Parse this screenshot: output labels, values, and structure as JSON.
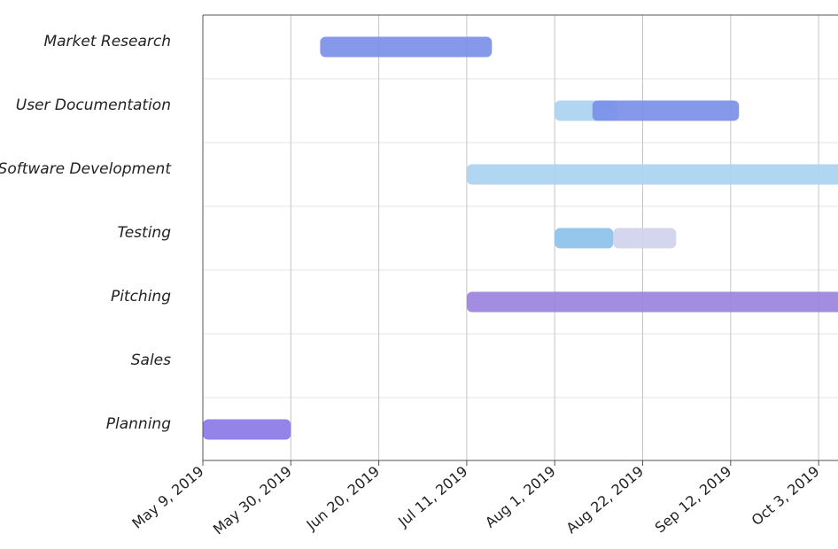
{
  "chart_data": {
    "type": "gantt",
    "categories": [
      "Market Research",
      "User Documentation",
      "Software Development",
      "Testing",
      "Pitching",
      "Sales",
      "Planning"
    ],
    "x_ticks": [
      "May 9, 2019",
      "May 30, 2019",
      "Jun 20, 2019",
      "Jul 11, 2019",
      "Aug 1, 2019",
      "Aug 22, 2019",
      "Sep 12, 2019",
      "Oct 3, 2019"
    ],
    "xlim": [
      "2019-05-09",
      "2019-10-25"
    ],
    "grid": true,
    "tasks": [
      {
        "category": "Market Research",
        "start": "2019-06-06",
        "end": "2019-07-17",
        "color": "#7b8fe8"
      },
      {
        "category": "User Documentation",
        "start": "2019-08-01",
        "end": "2019-08-16",
        "color": "#a9d2f0"
      },
      {
        "category": "User Documentation",
        "start": "2019-08-10",
        "end": "2019-09-14",
        "color": "#7b8fe8"
      },
      {
        "category": "Software Development",
        "start": "2019-07-11",
        "end": "2019-10-25",
        "color": "#a9d2f0"
      },
      {
        "category": "Testing",
        "start": "2019-08-01",
        "end": "2019-08-15",
        "color": "#8cc2ec"
      },
      {
        "category": "Testing",
        "start": "2019-08-15",
        "end": "2019-08-30",
        "color": "#cfd2eb"
      },
      {
        "category": "Pitching",
        "start": "2019-07-11",
        "end": "2019-10-25",
        "color": "#9a83dd"
      },
      {
        "category": "Planning",
        "start": "2019-05-09",
        "end": "2019-05-30",
        "color": "#8b7ae8"
      }
    ]
  }
}
